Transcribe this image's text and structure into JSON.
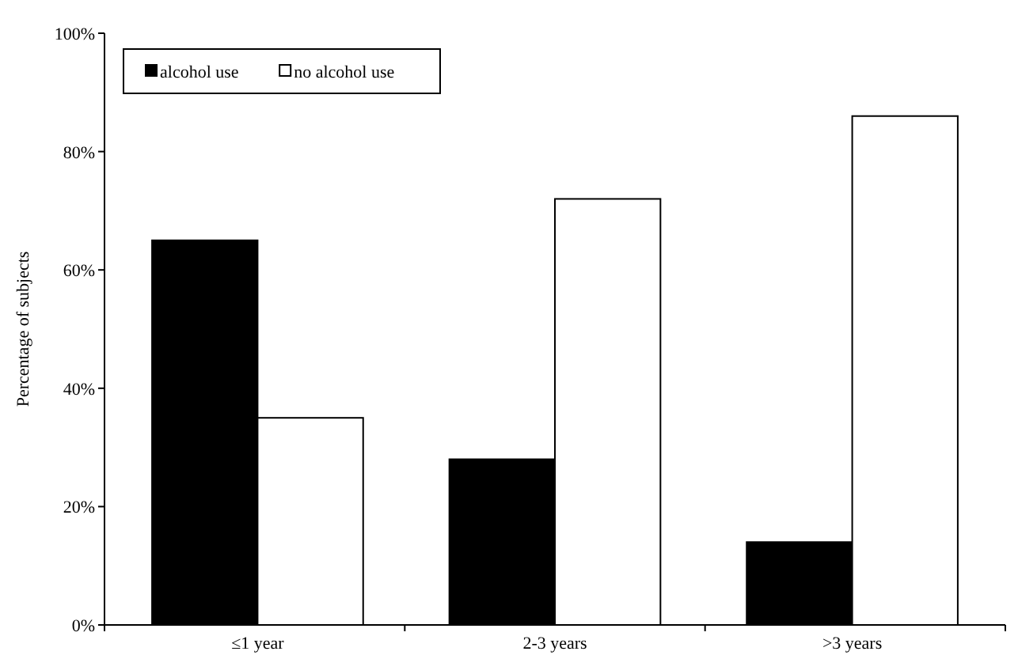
{
  "chart_data": {
    "type": "bar",
    "ylabel": "Percentage of subjects",
    "categories": [
      "≤1 year",
      "2-3 years",
      ">3 years"
    ],
    "series": [
      {
        "name": "alcohol use",
        "color": "#000000",
        "values": [
          65,
          28,
          14
        ]
      },
      {
        "name": "no alcohol use",
        "color": "#ffffff",
        "values": [
          35,
          72,
          86
        ]
      }
    ],
    "ylim": [
      0,
      100
    ],
    "yticks": [
      {
        "value": 0,
        "label": "0%"
      },
      {
        "value": 20,
        "label": "20%"
      },
      {
        "value": 40,
        "label": "40%"
      },
      {
        "value": 60,
        "label": "60%"
      },
      {
        "value": 80,
        "label": "80%"
      },
      {
        "value": 100,
        "label": "100%"
      }
    ],
    "grid": false,
    "legend": "top left"
  }
}
